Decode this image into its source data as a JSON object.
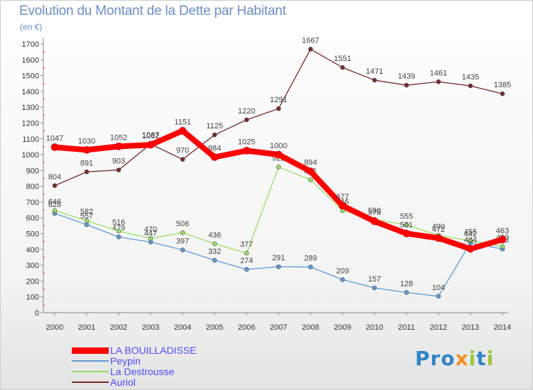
{
  "title": "Evolution du Montant de la Dette par Habitant",
  "subtitle": "(en €)",
  "logo": {
    "text": "Proxiti"
  },
  "chart_data": {
    "type": "line",
    "x": [
      "2000",
      "2001",
      "2002",
      "2003",
      "2004",
      "2005",
      "2006",
      "2007",
      "2008",
      "2009",
      "2010",
      "2011",
      "2012",
      "2013",
      "2014"
    ],
    "ylim": [
      0,
      1700
    ],
    "yticks": [
      0,
      100,
      200,
      300,
      400,
      500,
      600,
      700,
      800,
      900,
      1000,
      1100,
      1200,
      1300,
      1400,
      1500,
      1600,
      1700
    ],
    "grid": false,
    "legend_position": "bottom-left",
    "series": [
      {
        "name": "LA BOUILLADISSE",
        "color": "#ff0000",
        "values": [
          1047,
          1030,
          1052,
          1062,
          1151,
          984,
          1025,
          1000,
          894,
          677,
          578,
          501,
          472,
          404,
          463
        ]
      },
      {
        "name": "Peypin",
        "color": "#5b9bd5",
        "values": [
          628,
          557,
          479,
          447,
          397,
          332,
          274,
          291,
          289,
          209,
          157,
          128,
          104,
          442,
          403
        ]
      },
      {
        "name": "La Destrousse",
        "color": "#99dd66",
        "values": [
          646,
          582,
          516,
          470,
          506,
          436,
          377,
          922,
          841,
          646,
          590,
          555,
          490,
          455,
          420
        ]
      },
      {
        "name": "Auriol",
        "color": "#7a2a2a",
        "values": [
          804,
          891,
          903,
          1067,
          970,
          1125,
          1220,
          1291,
          1667,
          1551,
          1471,
          1439,
          1461,
          1435,
          1385
        ]
      }
    ]
  }
}
